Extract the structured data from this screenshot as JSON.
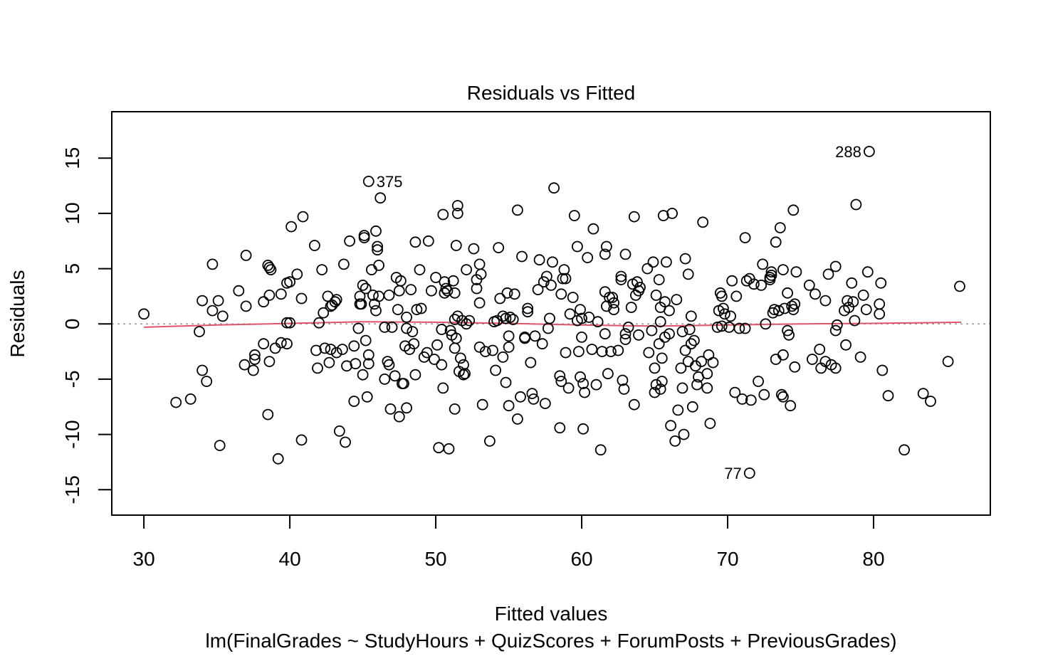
{
  "chart_data": {
    "type": "scatter",
    "title": "Residuals vs Fitted",
    "xlabel": "Fitted values",
    "ylabel": "Residuals",
    "subtitle": "lm(FinalGrades ~ StudyHours + QuizScores + ForumPosts + PreviousGrades)",
    "xlim": [
      27.8,
      88.0
    ],
    "ylim": [
      -17.3,
      19.2
    ],
    "x_ticks": [
      30,
      40,
      50,
      60,
      70,
      80
    ],
    "y_ticks": [
      -15,
      -10,
      -5,
      0,
      5,
      10,
      15
    ],
    "x_tick_labels": [
      "30",
      "40",
      "50",
      "60",
      "70",
      "80"
    ],
    "y_tick_labels": [
      "-15",
      "-10",
      "-5",
      "0",
      "5",
      "10",
      "15"
    ],
    "zero_line": {
      "y": 0,
      "style": "dotted",
      "color": "#999999"
    },
    "smooth_line": {
      "color": "#DF536B",
      "x": [
        30.0,
        35,
        40,
        45,
        50,
        55,
        60,
        65,
        70,
        75,
        80,
        86.0
      ],
      "y": [
        -0.3,
        -0.1,
        0.05,
        0.2,
        0.15,
        0.05,
        -0.1,
        -0.2,
        -0.1,
        0.0,
        0.05,
        0.15
      ]
    },
    "points_color": "#000000",
    "labeled_points": [
      {
        "label": "375",
        "x": 45.4,
        "y": 12.9
      },
      {
        "label": "288",
        "x": 79.7,
        "y": 15.6
      },
      {
        "label": "77",
        "x": 71.5,
        "y": -13.5
      }
    ],
    "points": [
      [
        30.0,
        0.9
      ],
      [
        32.2,
        -7.1
      ],
      [
        33.2,
        -6.8
      ],
      [
        33.8,
        -0.7
      ],
      [
        34.0,
        2.1
      ],
      [
        34.0,
        -4.2
      ],
      [
        34.3,
        -5.2
      ],
      [
        34.7,
        5.4
      ],
      [
        34.7,
        1.2
      ],
      [
        35.1,
        2.1
      ],
      [
        35.2,
        -11.0
      ],
      [
        35.4,
        0.7
      ],
      [
        36.5,
        3.0
      ],
      [
        36.9,
        -3.7
      ],
      [
        37.0,
        6.2
      ],
      [
        37.0,
        1.6
      ],
      [
        37.5,
        -4.2
      ],
      [
        37.6,
        -3.2
      ],
      [
        37.6,
        -2.8
      ],
      [
        38.2,
        2.0
      ],
      [
        38.2,
        -1.8
      ],
      [
        38.5,
        -8.2
      ],
      [
        38.5,
        5.3
      ],
      [
        38.6,
        5.1
      ],
      [
        38.6,
        2.6
      ],
      [
        38.6,
        -3.4
      ],
      [
        38.7,
        4.9
      ],
      [
        39.0,
        -2.2
      ],
      [
        39.2,
        -12.2
      ],
      [
        39.4,
        2.7
      ],
      [
        39.4,
        -1.7
      ],
      [
        39.8,
        0.1
      ],
      [
        39.8,
        -1.8
      ],
      [
        39.8,
        3.7
      ],
      [
        40.0,
        0.1
      ],
      [
        40.0,
        3.8
      ],
      [
        40.1,
        8.8
      ],
      [
        40.5,
        4.5
      ],
      [
        40.8,
        2.3
      ],
      [
        40.8,
        -10.5
      ],
      [
        40.9,
        9.7
      ],
      [
        41.7,
        7.1
      ],
      [
        41.8,
        -2.4
      ],
      [
        41.9,
        -4.0
      ],
      [
        42.0,
        0.1
      ],
      [
        42.2,
        4.9
      ],
      [
        42.3,
        1.0
      ],
      [
        42.4,
        -2.2
      ],
      [
        42.6,
        2.5
      ],
      [
        42.7,
        -3.5
      ],
      [
        42.8,
        -2.3
      ],
      [
        42.8,
        1.6
      ],
      [
        42.9,
        1.7
      ],
      [
        43.1,
        2.0
      ],
      [
        43.2,
        2.2
      ],
      [
        43.2,
        -2.6
      ],
      [
        43.4,
        -9.7
      ],
      [
        43.6,
        -2.3
      ],
      [
        43.7,
        5.4
      ],
      [
        43.8,
        -10.7
      ],
      [
        43.9,
        -3.8
      ],
      [
        44.1,
        7.5
      ],
      [
        44.4,
        -2.0
      ],
      [
        44.4,
        -7.0
      ],
      [
        44.5,
        -3.6
      ],
      [
        44.7,
        -0.4
      ],
      [
        44.8,
        1.8
      ],
      [
        44.8,
        2.5
      ],
      [
        44.9,
        1.8
      ],
      [
        45.0,
        3.5
      ],
      [
        45.0,
        -4.6
      ],
      [
        45.1,
        7.8
      ],
      [
        45.1,
        8.0
      ],
      [
        45.2,
        3.2
      ],
      [
        45.2,
        -1.5
      ],
      [
        45.3,
        -6.6
      ],
      [
        45.4,
        -2.8
      ],
      [
        45.4,
        -3.6
      ],
      [
        45.4,
        12.9
      ],
      [
        45.6,
        4.9
      ],
      [
        45.7,
        2.6
      ],
      [
        45.8,
        1.8
      ],
      [
        45.9,
        1.2
      ],
      [
        45.9,
        8.4
      ],
      [
        46.0,
        7.0
      ],
      [
        46.0,
        6.7
      ],
      [
        46.1,
        5.3
      ],
      [
        46.1,
        2.5
      ],
      [
        46.2,
        11.4
      ],
      [
        46.5,
        -0.3
      ],
      [
        46.5,
        -5.0
      ],
      [
        46.7,
        -3.4
      ],
      [
        46.8,
        2.6
      ],
      [
        46.8,
        -3.7
      ],
      [
        46.9,
        -7.7
      ],
      [
        47.0,
        -0.3
      ],
      [
        47.2,
        -4.7
      ],
      [
        47.3,
        4.2
      ],
      [
        47.4,
        1.3
      ],
      [
        47.5,
        3.0
      ],
      [
        47.5,
        -8.4
      ],
      [
        47.6,
        3.9
      ],
      [
        47.7,
        -5.4
      ],
      [
        47.8,
        -5.4
      ],
      [
        47.9,
        -2.0
      ],
      [
        48.0,
        0.6
      ],
      [
        48.0,
        -7.6
      ],
      [
        48.0,
        -0.4
      ],
      [
        48.2,
        -2.3
      ],
      [
        48.3,
        3.1
      ],
      [
        48.4,
        -0.7
      ],
      [
        48.5,
        -1.8
      ],
      [
        48.6,
        -4.6
      ],
      [
        48.6,
        7.4
      ],
      [
        48.7,
        1.3
      ],
      [
        48.9,
        4.9
      ],
      [
        49.0,
        1.4
      ],
      [
        49.2,
        -3.0
      ],
      [
        49.4,
        -2.6
      ],
      [
        49.5,
        7.5
      ],
      [
        49.7,
        3.0
      ],
      [
        49.9,
        -3.2
      ],
      [
        50.0,
        4.2
      ],
      [
        50.1,
        -1.9
      ],
      [
        50.2,
        -11.2
      ],
      [
        50.4,
        -0.5
      ],
      [
        50.4,
        -3.7
      ],
      [
        50.5,
        -5.8
      ],
      [
        50.5,
        9.9
      ],
      [
        50.6,
        3.8
      ],
      [
        50.6,
        2.8
      ],
      [
        50.7,
        3.2
      ],
      [
        50.8,
        3.0
      ],
      [
        50.9,
        -11.3
      ],
      [
        51.0,
        -0.6
      ],
      [
        51.1,
        -1.0
      ],
      [
        51.2,
        3.9
      ],
      [
        51.3,
        -7.7
      ],
      [
        51.3,
        2.8
      ],
      [
        51.3,
        0.4
      ],
      [
        51.3,
        -2.2
      ],
      [
        51.4,
        -1.3
      ],
      [
        51.4,
        7.1
      ],
      [
        51.5,
        10.7
      ],
      [
        51.5,
        10.0
      ],
      [
        51.5,
        0.7
      ],
      [
        51.6,
        -4.3
      ],
      [
        51.7,
        -3.1
      ],
      [
        51.8,
        0.3
      ],
      [
        51.9,
        -3.7
      ],
      [
        51.9,
        -4.6
      ],
      [
        52.0,
        -4.5
      ],
      [
        52.1,
        0.0
      ],
      [
        52.1,
        4.9
      ],
      [
        52.3,
        0.3
      ],
      [
        52.6,
        6.8
      ],
      [
        52.8,
        3.2
      ],
      [
        52.8,
        4.0
      ],
      [
        53.0,
        -2.1
      ],
      [
        53.0,
        1.9
      ],
      [
        53.0,
        5.4
      ],
      [
        53.1,
        4.5
      ],
      [
        53.2,
        -7.3
      ],
      [
        53.4,
        -2.5
      ],
      [
        53.7,
        -10.6
      ],
      [
        53.9,
        -2.4
      ],
      [
        54.0,
        0.2
      ],
      [
        54.1,
        -4.2
      ],
      [
        54.2,
        0.3
      ],
      [
        54.3,
        6.9
      ],
      [
        54.4,
        2.3
      ],
      [
        54.6,
        -3.0
      ],
      [
        54.6,
        0.7
      ],
      [
        54.8,
        -5.3
      ],
      [
        54.8,
        0.5
      ],
      [
        54.9,
        2.8
      ],
      [
        55.0,
        -2.1
      ],
      [
        55.0,
        -7.4
      ],
      [
        55.0,
        -1.1
      ],
      [
        55.1,
        0.6
      ],
      [
        55.3,
        0.4
      ],
      [
        55.4,
        2.7
      ],
      [
        55.6,
        -8.6
      ],
      [
        55.6,
        10.3
      ],
      [
        55.8,
        -6.6
      ],
      [
        55.9,
        6.1
      ],
      [
        56.1,
        -1.3
      ],
      [
        56.1,
        -1.2
      ],
      [
        56.3,
        1.4
      ],
      [
        56.3,
        1.1
      ],
      [
        56.5,
        -3.5
      ],
      [
        56.6,
        -6.3
      ],
      [
        56.7,
        -6.8
      ],
      [
        56.8,
        -1.1
      ],
      [
        57.0,
        3.1
      ],
      [
        57.1,
        5.8
      ],
      [
        57.3,
        -1.8
      ],
      [
        57.4,
        3.8
      ],
      [
        57.5,
        -7.2
      ],
      [
        57.6,
        4.3
      ],
      [
        57.7,
        -0.4
      ],
      [
        57.8,
        0.5
      ],
      [
        57.9,
        3.5
      ],
      [
        58.0,
        5.6
      ],
      [
        58.1,
        12.3
      ],
      [
        58.5,
        -4.7
      ],
      [
        58.5,
        -9.4
      ],
      [
        58.6,
        -5.2
      ],
      [
        58.6,
        2.7
      ],
      [
        58.7,
        4.1
      ],
      [
        58.8,
        4.9
      ],
      [
        58.9,
        4.1
      ],
      [
        58.9,
        -2.6
      ],
      [
        59.1,
        -5.8
      ],
      [
        59.2,
        0.9
      ],
      [
        59.4,
        2.4
      ],
      [
        59.5,
        9.8
      ],
      [
        59.7,
        0.3
      ],
      [
        59.7,
        7.0
      ],
      [
        59.8,
        -2.5
      ],
      [
        59.9,
        1.3
      ],
      [
        59.9,
        -4.8
      ],
      [
        60.0,
        0.5
      ],
      [
        60.0,
        -1.2
      ],
      [
        60.1,
        -5.4
      ],
      [
        60.1,
        -9.5
      ],
      [
        60.2,
        -6.2
      ],
      [
        60.4,
        6.0
      ],
      [
        60.5,
        0.6
      ],
      [
        60.7,
        -2.3
      ],
      [
        60.8,
        8.6
      ],
      [
        61.0,
        -5.5
      ],
      [
        61.1,
        0.2
      ],
      [
        61.3,
        -11.4
      ],
      [
        61.4,
        -2.5
      ],
      [
        61.6,
        6.3
      ],
      [
        61.6,
        -0.9
      ],
      [
        61.6,
        2.9
      ],
      [
        61.7,
        7.0
      ],
      [
        61.7,
        1.6
      ],
      [
        61.8,
        -4.5
      ],
      [
        61.9,
        2.4
      ],
      [
        62.0,
        -2.5
      ],
      [
        62.1,
        2.4
      ],
      [
        62.2,
        1.9
      ],
      [
        62.2,
        1.3
      ],
      [
        62.5,
        -2.4
      ],
      [
        62.7,
        4.3
      ],
      [
        62.7,
        4.0
      ],
      [
        62.8,
        -5.1
      ],
      [
        62.9,
        -5.9
      ],
      [
        63.0,
        -0.9
      ],
      [
        63.0,
        6.3
      ],
      [
        63.0,
        -1.4
      ],
      [
        63.2,
        -0.3
      ],
      [
        63.4,
        1.5
      ],
      [
        63.5,
        3.6
      ],
      [
        63.6,
        -7.3
      ],
      [
        63.6,
        9.7
      ],
      [
        63.7,
        2.6
      ],
      [
        63.8,
        3.8
      ],
      [
        63.9,
        3.0
      ],
      [
        63.9,
        -1.0
      ],
      [
        64.0,
        3.3
      ],
      [
        64.5,
        5.0
      ],
      [
        64.6,
        -2.6
      ],
      [
        64.8,
        -0.6
      ],
      [
        64.9,
        5.6
      ],
      [
        65.0,
        -6.2
      ],
      [
        65.0,
        -4.0
      ],
      [
        65.1,
        -5.5
      ],
      [
        65.1,
        2.6
      ],
      [
        65.3,
        -1.8
      ],
      [
        65.3,
        4.0
      ],
      [
        65.4,
        1.5
      ],
      [
        65.4,
        0.2
      ],
      [
        65.4,
        -5.9
      ],
      [
        65.5,
        -5.2
      ],
      [
        65.5,
        -3.1
      ],
      [
        65.6,
        9.8
      ],
      [
        65.7,
        2.0
      ],
      [
        65.7,
        -1.2
      ],
      [
        65.8,
        5.6
      ],
      [
        66.0,
        -0.9
      ],
      [
        66.0,
        1.2
      ],
      [
        66.1,
        -9.2
      ],
      [
        66.2,
        10.0
      ],
      [
        66.4,
        -10.6
      ],
      [
        66.5,
        2.2
      ],
      [
        66.6,
        -7.8
      ],
      [
        66.8,
        -4.0
      ],
      [
        66.9,
        -0.7
      ],
      [
        66.9,
        -5.8
      ],
      [
        67.0,
        -10.0
      ],
      [
        67.1,
        -2.4
      ],
      [
        67.1,
        5.9
      ],
      [
        67.3,
        4.5
      ],
      [
        67.3,
        -3.4
      ],
      [
        67.4,
        -0.5
      ],
      [
        67.5,
        0.7
      ],
      [
        67.5,
        -1.8
      ],
      [
        67.6,
        -7.5
      ],
      [
        67.7,
        -1.5
      ],
      [
        67.8,
        -3.8
      ],
      [
        67.9,
        -5.5
      ],
      [
        68.0,
        -4.8
      ],
      [
        68.2,
        -3.4
      ],
      [
        68.3,
        9.2
      ],
      [
        68.6,
        -4.5
      ],
      [
        68.6,
        -5.8
      ],
      [
        68.7,
        -2.8
      ],
      [
        68.8,
        -9.0
      ],
      [
        69.0,
        -3.5
      ],
      [
        69.3,
        -0.3
      ],
      [
        69.4,
        1.2
      ],
      [
        69.5,
        2.8
      ],
      [
        69.6,
        -0.2
      ],
      [
        69.6,
        2.5
      ],
      [
        69.7,
        1.4
      ],
      [
        69.8,
        0.9
      ],
      [
        70.1,
        -0.3
      ],
      [
        70.2,
        0.7
      ],
      [
        70.3,
        3.9
      ],
      [
        70.5,
        -6.2
      ],
      [
        70.6,
        2.5
      ],
      [
        70.8,
        -0.4
      ],
      [
        71.0,
        -6.8
      ],
      [
        71.2,
        -0.4
      ],
      [
        71.2,
        7.8
      ],
      [
        71.3,
        3.9
      ],
      [
        71.5,
        4.1
      ],
      [
        71.5,
        -13.5
      ],
      [
        71.6,
        -6.9
      ],
      [
        71.8,
        3.6
      ],
      [
        72.1,
        -5.2
      ],
      [
        72.3,
        3.5
      ],
      [
        72.4,
        5.4
      ],
      [
        72.5,
        -6.4
      ],
      [
        72.6,
        0.0
      ],
      [
        72.9,
        4.0
      ],
      [
        72.9,
        4.2
      ],
      [
        73.0,
        4.4
      ],
      [
        73.0,
        4.7
      ],
      [
        73.1,
        1.0
      ],
      [
        73.2,
        1.3
      ],
      [
        73.3,
        -3.2
      ],
      [
        73.3,
        7.4
      ],
      [
        73.5,
        1.2
      ],
      [
        73.6,
        8.7
      ],
      [
        73.7,
        -6.4
      ],
      [
        73.8,
        4.9
      ],
      [
        73.8,
        -6.6
      ],
      [
        73.8,
        -2.8
      ],
      [
        73.9,
        1.4
      ],
      [
        74.1,
        -0.6
      ],
      [
        74.1,
        2.8
      ],
      [
        74.2,
        -1.0
      ],
      [
        74.3,
        -7.4
      ],
      [
        74.4,
        1.6
      ],
      [
        74.5,
        10.3
      ],
      [
        74.5,
        1.3
      ],
      [
        74.6,
        1.8
      ],
      [
        74.6,
        -3.9
      ],
      [
        74.7,
        4.7
      ],
      [
        75.6,
        3.5
      ],
      [
        75.8,
        -3.2
      ],
      [
        76.0,
        2.7
      ],
      [
        76.3,
        -2.3
      ],
      [
        76.4,
        -4.0
      ],
      [
        76.7,
        -3.4
      ],
      [
        76.7,
        2.1
      ],
      [
        76.9,
        4.5
      ],
      [
        77.1,
        -3.7
      ],
      [
        77.4,
        -4.0
      ],
      [
        77.4,
        5.2
      ],
      [
        77.4,
        -0.6
      ],
      [
        77.5,
        -0.1
      ],
      [
        78.0,
        1.2
      ],
      [
        78.1,
        -1.9
      ],
      [
        78.2,
        2.1
      ],
      [
        78.3,
        1.5
      ],
      [
        78.5,
        3.7
      ],
      [
        78.6,
        2.0
      ],
      [
        78.7,
        0.3
      ],
      [
        78.8,
        10.8
      ],
      [
        79.1,
        -3.0
      ],
      [
        79.3,
        2.6
      ],
      [
        79.5,
        1.3
      ],
      [
        79.6,
        4.7
      ],
      [
        79.7,
        15.6
      ],
      [
        80.4,
        1.8
      ],
      [
        80.4,
        0.9
      ],
      [
        80.5,
        3.7
      ],
      [
        80.6,
        -4.2
      ],
      [
        81.0,
        -6.5
      ],
      [
        82.1,
        -11.4
      ],
      [
        83.4,
        -6.3
      ],
      [
        83.9,
        -7.0
      ],
      [
        85.1,
        -3.4
      ],
      [
        85.9,
        3.4
      ]
    ]
  }
}
